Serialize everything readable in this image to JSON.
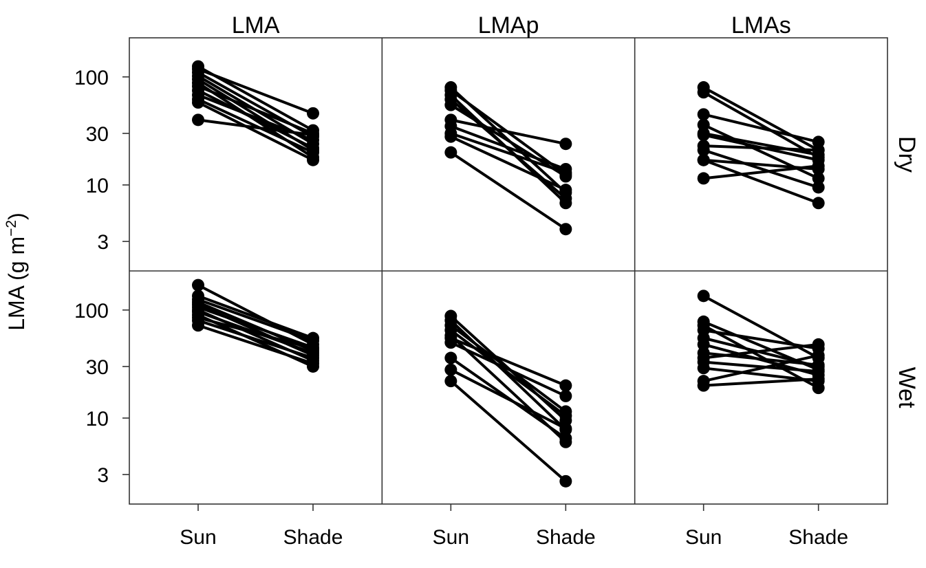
{
  "chart_data": {
    "type": "line",
    "scale_y": "log",
    "ylim": [
      1.6,
      230
    ],
    "yticks": [
      "100",
      "30",
      "10",
      "3"
    ],
    "ytick_values": [
      100,
      30,
      10,
      3
    ],
    "ylabel": "LMA (g m",
    "ylabel_exp": "−2",
    "ylabel_close": ")",
    "categories": [
      "Sun",
      "Shade"
    ],
    "columns": [
      "LMA",
      "LMAp",
      "LMAs"
    ],
    "rows": [
      "Dry",
      "Wet"
    ],
    "line_color": "#000000",
    "panels": [
      {
        "column": "LMA",
        "row": "Dry",
        "pairs": [
          [
            125,
            32
          ],
          [
            118,
            46
          ],
          [
            110,
            28
          ],
          [
            102,
            24
          ],
          [
            95,
            21
          ],
          [
            88,
            18
          ],
          [
            82,
            30
          ],
          [
            75,
            22
          ],
          [
            68,
            26
          ],
          [
            62,
            20
          ],
          [
            58,
            17
          ],
          [
            40,
            29
          ]
        ]
      },
      {
        "column": "LMAp",
        "row": "Dry",
        "pairs": [
          [
            80,
            8.5
          ],
          [
            75,
            12.5
          ],
          [
            68,
            6.8
          ],
          [
            62,
            7.5
          ],
          [
            55,
            12
          ],
          [
            40,
            24
          ],
          [
            35,
            14
          ],
          [
            30,
            13
          ],
          [
            28,
            9
          ],
          [
            20,
            3.9
          ]
        ]
      },
      {
        "column": "LMAs",
        "row": "Dry",
        "pairs": [
          [
            80,
            21
          ],
          [
            72,
            18
          ],
          [
            45,
            25
          ],
          [
            36,
            11.5
          ],
          [
            30,
            19
          ],
          [
            29,
            17
          ],
          [
            23,
            21
          ],
          [
            21,
            9.5
          ],
          [
            17,
            14
          ],
          [
            17,
            6.8
          ],
          [
            11.5,
            15
          ]
        ]
      },
      {
        "column": "LMA",
        "row": "Wet",
        "pairs": [
          [
            170,
            48
          ],
          [
            135,
            55
          ],
          [
            125,
            52
          ],
          [
            118,
            42
          ],
          [
            112,
            38
          ],
          [
            106,
            45
          ],
          [
            100,
            34
          ],
          [
            96,
            40
          ],
          [
            90,
            30
          ],
          [
            85,
            44
          ],
          [
            80,
            36
          ],
          [
            72,
            32
          ]
        ]
      },
      {
        "column": "LMAp",
        "row": "Wet",
        "pairs": [
          [
            88,
            9.5
          ],
          [
            80,
            7.8
          ],
          [
            72,
            11.5
          ],
          [
            65,
            10.5
          ],
          [
            58,
            6
          ],
          [
            55,
            20
          ],
          [
            50,
            16
          ],
          [
            36,
            6.5
          ],
          [
            28,
            8
          ],
          [
            22,
            2.6
          ]
        ]
      },
      {
        "column": "LMAs",
        "row": "Wet",
        "pairs": [
          [
            135,
            36
          ],
          [
            78,
            28
          ],
          [
            72,
            19
          ],
          [
            65,
            44
          ],
          [
            55,
            30
          ],
          [
            48,
            25
          ],
          [
            40,
            31
          ],
          [
            36,
            48
          ],
          [
            33,
            27
          ],
          [
            29,
            22
          ],
          [
            22,
            38
          ],
          [
            20,
            23
          ]
        ]
      }
    ]
  }
}
